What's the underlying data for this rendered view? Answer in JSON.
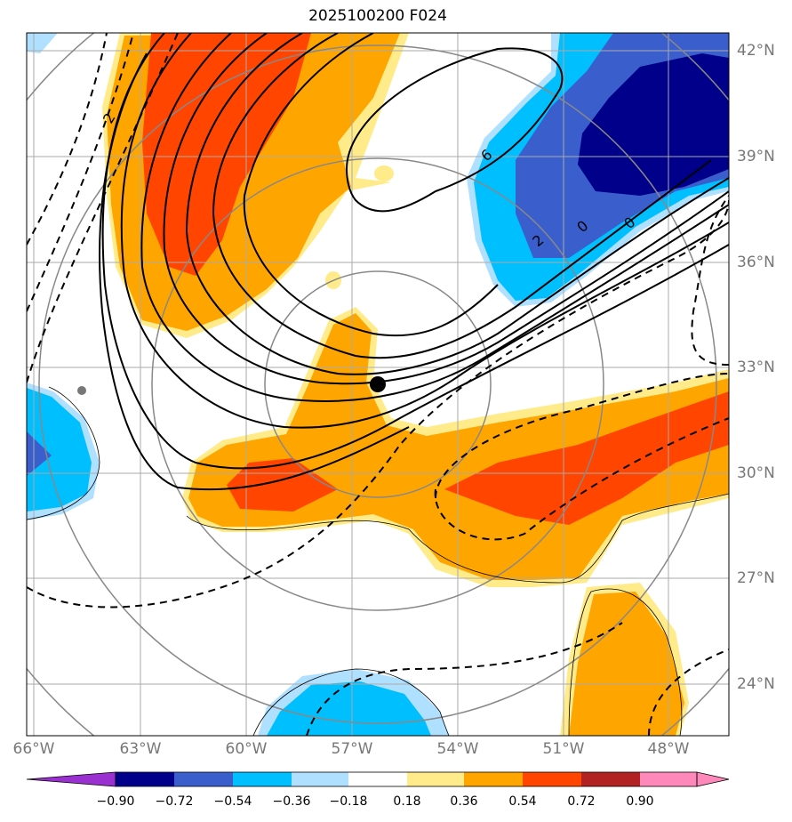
{
  "title": "2025100200 F024",
  "lon_labels": [
    "66°W",
    "63°W",
    "60°W",
    "57°W",
    "54°W",
    "51°W",
    "48°W"
  ],
  "lat_labels": [
    "42°N",
    "39°N",
    "36°N",
    "33°N",
    "30°N",
    "27°N",
    "24°N"
  ],
  "contour_labels": [
    "2",
    "6",
    "2",
    "0",
    "0"
  ],
  "colorbar": {
    "ticks": [
      "−0.90",
      "−0.72",
      "−0.54",
      "−0.36",
      "−0.18",
      "0.18",
      "0.36",
      "0.54",
      "0.72",
      "0.90"
    ],
    "colors": [
      "#9a30d0",
      "#00008b",
      "#3a5fcd",
      "#00bfff",
      "#b0e0ff",
      "#ffffff",
      "#ffeb8a",
      "#ffa500",
      "#ff4500",
      "#b22222",
      "#ff88bb"
    ]
  },
  "storm_center": {
    "lon": "56.3°W",
    "lat": "32.5°N"
  }
}
